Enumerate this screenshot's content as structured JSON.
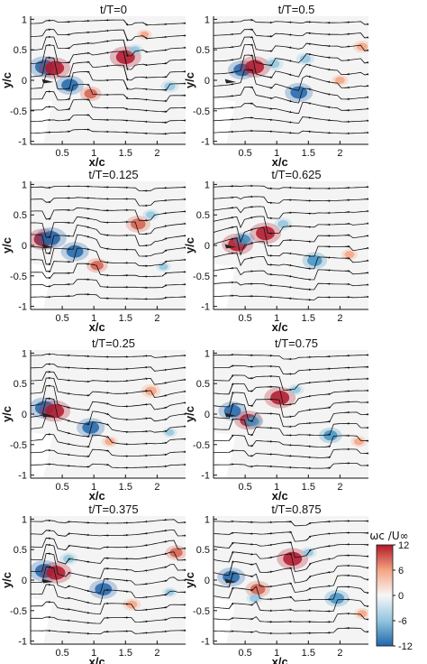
{
  "chart_data": [
    {
      "type": "heatmap",
      "title": "t/T=0",
      "xlabel": "x/c",
      "ylabel": "y/c",
      "xticks": [
        "0.5",
        "1",
        "1.5",
        "2"
      ],
      "xtick_values": [
        0.5,
        1,
        1.5,
        2
      ],
      "yticks": [
        "1",
        "0.5",
        "0",
        "-0.5",
        "-1"
      ],
      "ytick_values": [
        1,
        0.5,
        0,
        -0.5,
        -1
      ],
      "xlim": [
        0,
        2.45
      ],
      "ylim": [
        -1.05,
        1.05
      ],
      "vortices": [
        {
          "x": 0.22,
          "y": 0.22,
          "sign": -1,
          "strength": 12
        },
        {
          "x": 0.38,
          "y": 0.2,
          "sign": 1,
          "strength": 12
        },
        {
          "x": 0.62,
          "y": -0.08,
          "sign": -1,
          "strength": 10
        },
        {
          "x": 0.95,
          "y": -0.22,
          "sign": 1,
          "strength": 6
        },
        {
          "x": 1.5,
          "y": 0.38,
          "sign": 1,
          "strength": 12
        },
        {
          "x": 1.65,
          "y": 0.5,
          "sign": -1,
          "strength": 3
        },
        {
          "x": 2.2,
          "y": -0.1,
          "sign": -1,
          "strength": 4
        },
        {
          "x": 1.8,
          "y": 0.75,
          "sign": 1,
          "strength": 2
        }
      ]
    },
    {
      "type": "heatmap",
      "title": "t/T=0.5",
      "xlabel": "x/c",
      "ylabel": "y/c",
      "xticks": [
        "0.5",
        "1",
        "1.5",
        "2"
      ],
      "xtick_values": [
        0.5,
        1,
        1.5,
        2
      ],
      "yticks": [
        "1",
        "0.5",
        "0",
        "-0.5",
        "-1"
      ],
      "ytick_values": [
        1,
        0.5,
        0,
        -0.5,
        -1
      ],
      "xlim": [
        0,
        2.45
      ],
      "ylim": [
        -1.05,
        1.05
      ],
      "vortices": [
        {
          "x": 0.45,
          "y": 0.17,
          "sign": -1,
          "strength": 10
        },
        {
          "x": 0.65,
          "y": 0.22,
          "sign": 1,
          "strength": 12
        },
        {
          "x": 0.95,
          "y": 0.27,
          "sign": -1,
          "strength": 5
        },
        {
          "x": 1.35,
          "y": -0.2,
          "sign": -1,
          "strength": 10
        },
        {
          "x": 1.45,
          "y": 0.35,
          "sign": -1,
          "strength": 4
        },
        {
          "x": 2.0,
          "y": 0.0,
          "sign": 1,
          "strength": 3
        },
        {
          "x": 2.35,
          "y": 0.55,
          "sign": 1,
          "strength": 4
        }
      ]
    },
    {
      "type": "heatmap",
      "title": "t/T=0.125",
      "xlabel": "x/c",
      "ylabel": "y/c",
      "xticks": [
        "0.5",
        "1",
        "1.5",
        "2"
      ],
      "xtick_values": [
        0.5,
        1,
        1.5,
        2
      ],
      "yticks": [
        "1",
        "0.5",
        "0",
        "-0.5",
        "-1"
      ],
      "ytick_values": [
        1,
        0.5,
        0,
        -0.5,
        -1
      ],
      "xlim": [
        0,
        2.45
      ],
      "ylim": [
        -1.05,
        1.05
      ],
      "vortices": [
        {
          "x": 0.2,
          "y": 0.1,
          "sign": 1,
          "strength": 12
        },
        {
          "x": 0.32,
          "y": 0.12,
          "sign": -1,
          "strength": 12
        },
        {
          "x": 0.7,
          "y": -0.1,
          "sign": -1,
          "strength": 10
        },
        {
          "x": 1.05,
          "y": -0.33,
          "sign": 1,
          "strength": 6
        },
        {
          "x": 1.7,
          "y": 0.35,
          "sign": 1,
          "strength": 8
        },
        {
          "x": 1.9,
          "y": 0.5,
          "sign": -1,
          "strength": 3
        },
        {
          "x": 2.1,
          "y": -0.35,
          "sign": -1,
          "strength": 2
        }
      ]
    },
    {
      "type": "heatmap",
      "title": "t/T=0.625",
      "xlabel": "x/c",
      "ylabel": "y/c",
      "xticks": [
        "0.5",
        "1",
        "1.5",
        "2"
      ],
      "xtick_values": [
        0.5,
        1,
        1.5,
        2
      ],
      "yticks": [
        "1",
        "0.5",
        "0",
        "-0.5",
        "-1"
      ],
      "ytick_values": [
        1,
        0.5,
        0,
        -0.5,
        -1
      ],
      "xlim": [
        0,
        2.45
      ],
      "ylim": [
        -1.05,
        1.05
      ],
      "vortices": [
        {
          "x": 0.38,
          "y": 0.02,
          "sign": 1,
          "strength": 12
        },
        {
          "x": 0.48,
          "y": 0.1,
          "sign": -1,
          "strength": 6
        },
        {
          "x": 0.82,
          "y": 0.2,
          "sign": 1,
          "strength": 12
        },
        {
          "x": 1.1,
          "y": 0.35,
          "sign": -1,
          "strength": 4
        },
        {
          "x": 1.6,
          "y": -0.25,
          "sign": -1,
          "strength": 8
        },
        {
          "x": 2.15,
          "y": -0.15,
          "sign": 1,
          "strength": 3
        }
      ]
    },
    {
      "type": "heatmap",
      "title": "t/T=0.25",
      "xlabel": "x/c",
      "ylabel": "y/c",
      "xticks": [
        "0.5",
        "1",
        "1.5",
        "2"
      ],
      "xtick_values": [
        0.5,
        1,
        1.5,
        2
      ],
      "yticks": [
        "1",
        "0.5",
        "0",
        "-0.5",
        "-1"
      ],
      "ytick_values": [
        1,
        0.5,
        0,
        -0.5,
        -1
      ],
      "xlim": [
        0,
        2.45
      ],
      "ylim": [
        -1.05,
        1.05
      ],
      "vortices": [
        {
          "x": 0.22,
          "y": 0.1,
          "sign": -1,
          "strength": 12
        },
        {
          "x": 0.38,
          "y": 0.05,
          "sign": 1,
          "strength": 12
        },
        {
          "x": 0.95,
          "y": -0.22,
          "sign": -1,
          "strength": 10
        },
        {
          "x": 1.25,
          "y": -0.45,
          "sign": 1,
          "strength": 3
        },
        {
          "x": 1.9,
          "y": 0.38,
          "sign": 1,
          "strength": 5
        },
        {
          "x": 2.2,
          "y": -0.3,
          "sign": -1,
          "strength": 2
        }
      ]
    },
    {
      "type": "heatmap",
      "title": "t/T=0.75",
      "xlabel": "x/c",
      "ylabel": "y/c",
      "xticks": [
        "0.5",
        "1",
        "1.5",
        "2"
      ],
      "xtick_values": [
        0.5,
        1,
        1.5,
        2
      ],
      "yticks": [
        "1",
        "0.5",
        "0",
        "-0.5",
        "-1"
      ],
      "ytick_values": [
        1,
        0.5,
        0,
        -0.5,
        -1
      ],
      "xlim": [
        0,
        2.45
      ],
      "ylim": [
        -1.05,
        1.05
      ],
      "vortices": [
        {
          "x": 0.3,
          "y": 0.05,
          "sign": -1,
          "strength": 10
        },
        {
          "x": 0.55,
          "y": -0.1,
          "sign": 1,
          "strength": 10
        },
        {
          "x": 0.62,
          "y": -0.12,
          "sign": -1,
          "strength": 6
        },
        {
          "x": 1.05,
          "y": 0.27,
          "sign": 1,
          "strength": 12
        },
        {
          "x": 1.3,
          "y": 0.4,
          "sign": -1,
          "strength": 3
        },
        {
          "x": 1.85,
          "y": -0.35,
          "sign": -1,
          "strength": 7
        },
        {
          "x": 2.3,
          "y": -0.45,
          "sign": 1,
          "strength": 3
        }
      ]
    },
    {
      "type": "heatmap",
      "title": "t/T=0.375",
      "xlabel": "x/c",
      "ylabel": "y/c",
      "xticks": [
        "0.5",
        "1",
        "1.5",
        "2"
      ],
      "xtick_values": [
        0.5,
        1,
        1.5,
        2
      ],
      "yticks": [
        "1",
        "0.5",
        "0",
        "-0.5",
        "-1"
      ],
      "ytick_values": [
        1,
        0.5,
        0,
        -0.5,
        -1
      ],
      "xlim": [
        0,
        2.45
      ],
      "ylim": [
        -1.05,
        1.05
      ],
      "vortices": [
        {
          "x": 0.22,
          "y": 0.15,
          "sign": -1,
          "strength": 12
        },
        {
          "x": 0.4,
          "y": 0.12,
          "sign": 1,
          "strength": 12
        },
        {
          "x": 0.6,
          "y": 0.35,
          "sign": -1,
          "strength": 4
        },
        {
          "x": 1.15,
          "y": -0.15,
          "sign": -1,
          "strength": 10
        },
        {
          "x": 1.6,
          "y": -0.4,
          "sign": 1,
          "strength": 4
        },
        {
          "x": 2.3,
          "y": 0.45,
          "sign": 1,
          "strength": 6
        },
        {
          "x": 2.2,
          "y": -0.2,
          "sign": -1,
          "strength": 2
        }
      ]
    },
    {
      "type": "heatmap",
      "title": "t/T=0.875",
      "xlabel": "x/c",
      "ylabel": "y/c",
      "xticks": [
        "0.5",
        "1",
        "1.5",
        "2"
      ],
      "xtick_values": [
        0.5,
        1,
        1.5,
        2
      ],
      "yticks": [
        "1",
        "0.5",
        "0",
        "-0.5",
        "-1"
      ],
      "ytick_values": [
        1,
        0.5,
        0,
        -0.5,
        -1
      ],
      "xlim": [
        0,
        2.45
      ],
      "ylim": [
        -1.05,
        1.05
      ],
      "vortices": [
        {
          "x": 0.28,
          "y": 0.05,
          "sign": -1,
          "strength": 10
        },
        {
          "x": 0.7,
          "y": -0.15,
          "sign": 1,
          "strength": 8
        },
        {
          "x": 0.65,
          "y": -0.3,
          "sign": -1,
          "strength": 3
        },
        {
          "x": 1.25,
          "y": 0.35,
          "sign": 1,
          "strength": 12
        },
        {
          "x": 1.5,
          "y": 0.45,
          "sign": -1,
          "strength": 3
        },
        {
          "x": 1.95,
          "y": -0.3,
          "sign": -1,
          "strength": 8
        },
        {
          "x": 2.35,
          "y": -0.55,
          "sign": 1,
          "strength": 3
        }
      ]
    }
  ],
  "colorbar": {
    "label": "ωc /U∞",
    "ticks": [
      "12",
      "6",
      "0",
      "-6",
      "-12"
    ],
    "tick_values": [
      12,
      6,
      0,
      -6,
      -12
    ],
    "range": [
      -12,
      12
    ],
    "colors": [
      "#2166ac",
      "#92c5de",
      "#f7f7f7",
      "#f4a582",
      "#b2182b"
    ]
  }
}
